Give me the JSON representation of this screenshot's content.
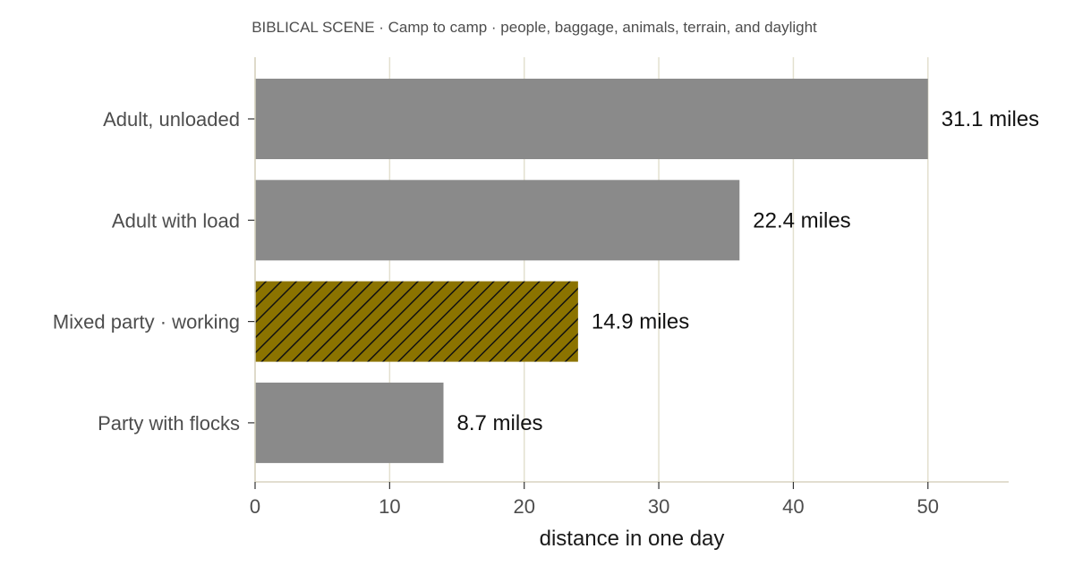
{
  "chart_data": {
    "type": "bar",
    "orientation": "horizontal",
    "title": "BIBLICAL SCENE · Camp to camp · people, baggage, animals, terrain, and daylight",
    "xlabel": "distance in one day",
    "ylabel": "",
    "xlim": [
      0,
      56
    ],
    "xticks": [
      0,
      10,
      20,
      30,
      40,
      50
    ],
    "grid": "vertical",
    "legend": "none",
    "categories": [
      "Adult, unloaded",
      "Adult with load",
      "Mixed party · working",
      "Party with flocks"
    ],
    "values": [
      50,
      36,
      24,
      14
    ],
    "data_labels": [
      "31.1 miles",
      "22.4 miles",
      "14.9 miles",
      "8.7 miles"
    ],
    "highlight_index": 2,
    "colors": {
      "bar": "#8a8a8a",
      "highlight": "#8b7300",
      "hatch": "#111111",
      "grid": "#e3e0cf",
      "axis": "#d8d4c0"
    }
  }
}
